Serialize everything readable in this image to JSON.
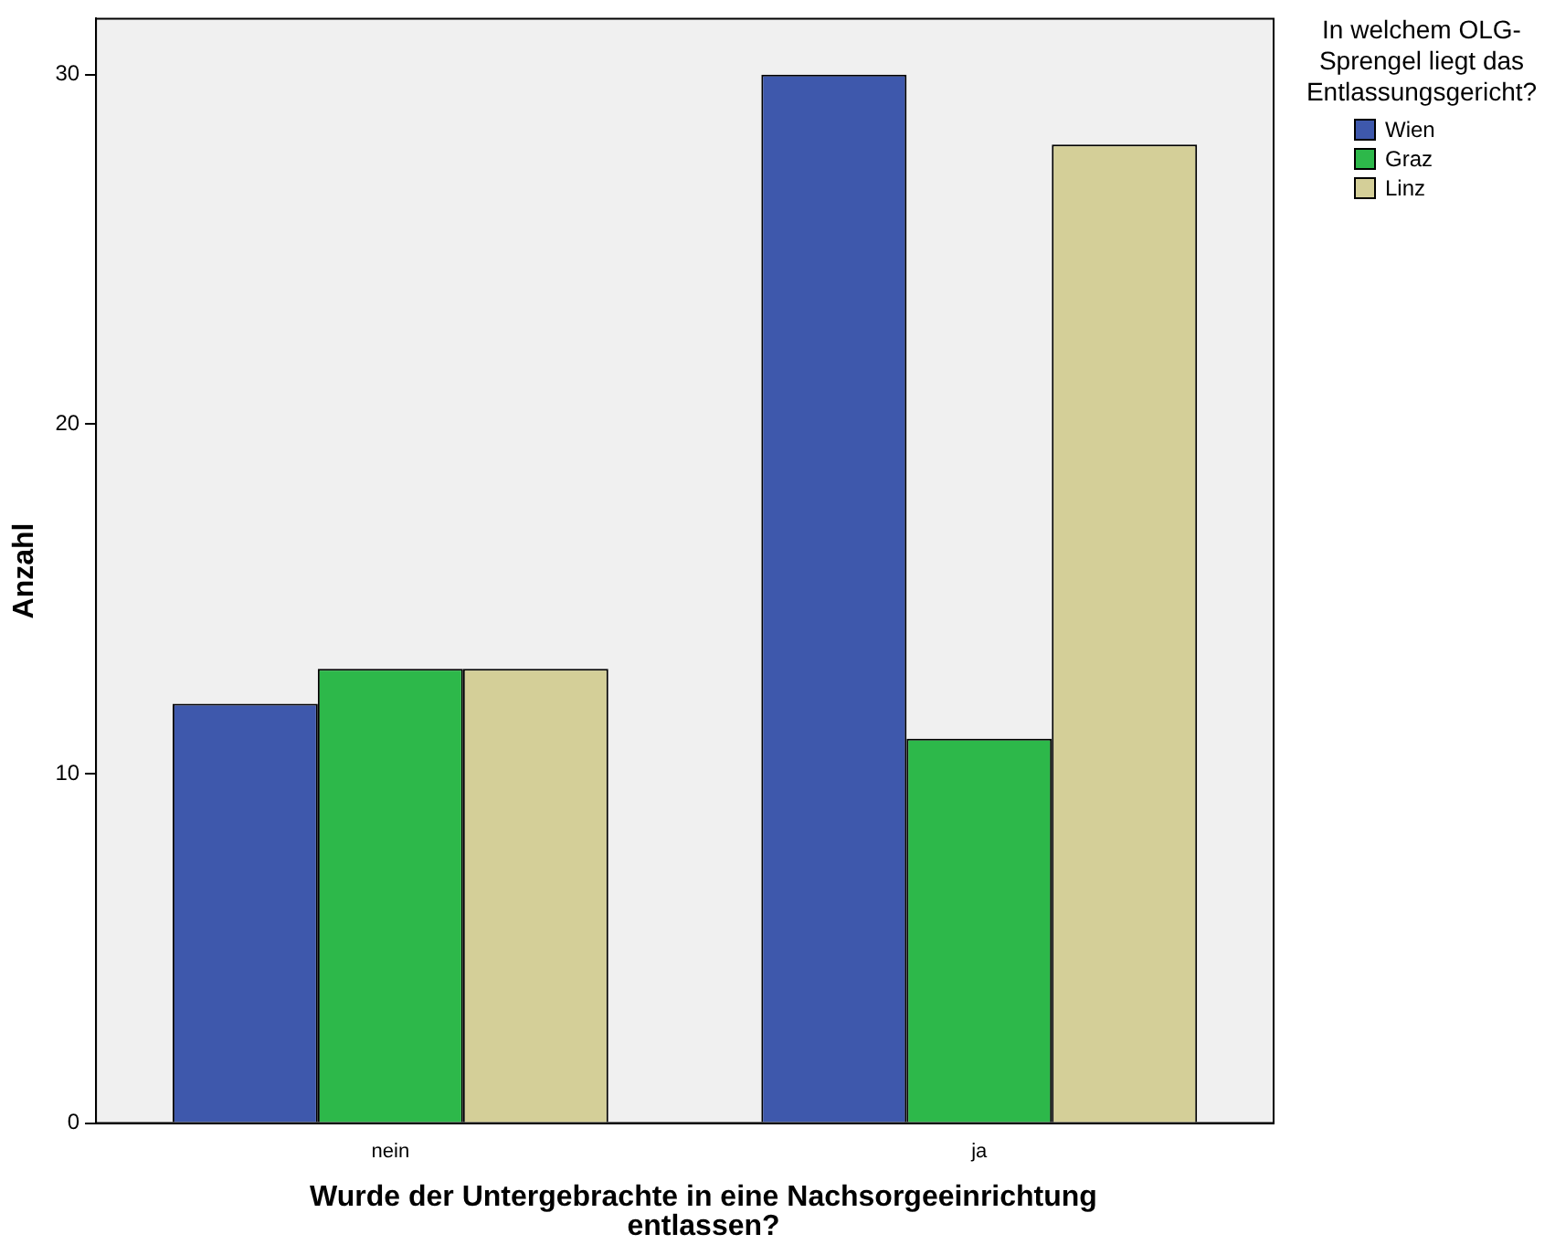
{
  "chart_data": {
    "type": "bar",
    "xlabel": "Wurde der Untergebrachte in eine Nachsorgeeinrichtung entlassen?",
    "ylabel": "Anzahl",
    "legend_title": "In welchem OLG-Sprengel liegt das Entlassungsgericht?",
    "categories": [
      "nein",
      "ja"
    ],
    "series": [
      {
        "name": "Wien",
        "color": "#3e58ac",
        "values": [
          12,
          30
        ]
      },
      {
        "name": "Graz",
        "color": "#2db84a",
        "values": [
          13,
          11
        ]
      },
      {
        "name": "Linz",
        "color": "#d4cf98",
        "values": [
          13,
          28
        ]
      }
    ],
    "ylim": [
      0,
      31.6
    ],
    "yticks": [
      0,
      10,
      20,
      30
    ],
    "grid": false,
    "legend": "top right"
  }
}
